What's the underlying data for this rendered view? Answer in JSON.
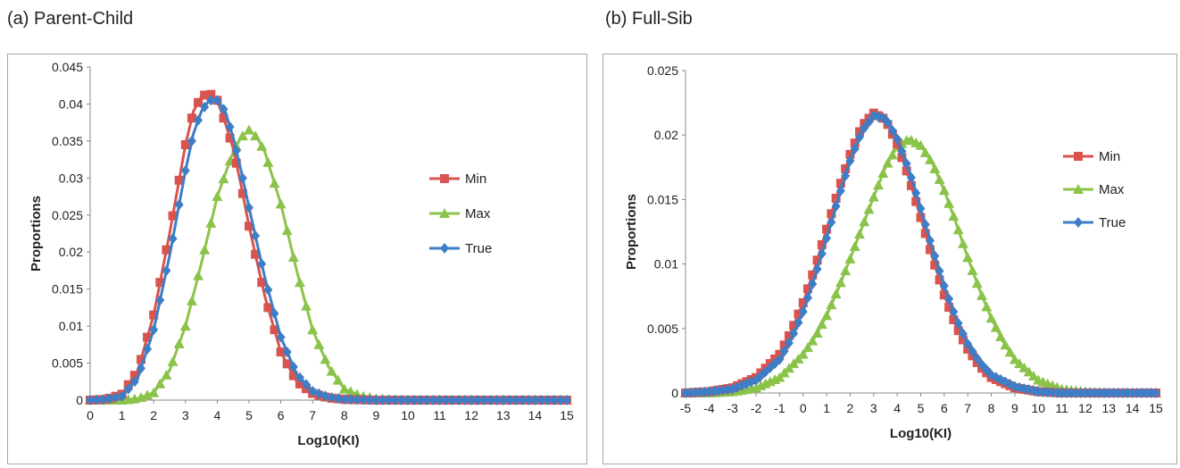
{
  "panels": [
    {
      "label": "(a) Parent-Child"
    },
    {
      "label": "(b) Full-Sib"
    }
  ],
  "chart_data": [
    {
      "type": "line",
      "xlabel": "Log10(KI)",
      "ylabel": "Proportions",
      "xlim": [
        0,
        15
      ],
      "ylim": [
        0,
        0.045
      ],
      "xticks": [
        0,
        1,
        2,
        3,
        4,
        5,
        6,
        7,
        8,
        9,
        10,
        11,
        12,
        13,
        14,
        15
      ],
      "yticks": [
        0,
        0.005,
        0.01,
        0.015,
        0.02,
        0.025,
        0.03,
        0.035,
        0.04,
        0.045
      ],
      "ytick_labels": [
        "0",
        "0.005",
        "0.01",
        "0.015",
        "0.02",
        "0.025",
        "0.03",
        "0.035",
        "0.04",
        "0.045"
      ],
      "grid": false,
      "legend": "right",
      "series": [
        {
          "name": "Min",
          "color": "#d9534f",
          "marker": "square",
          "x": [
            0,
            0.5,
            1,
            1.5,
            2,
            2.5,
            3,
            3.25,
            3.5,
            3.75,
            4,
            4.25,
            4.5,
            4.75,
            5,
            5.5,
            6,
            6.5,
            7,
            7.5,
            8,
            9,
            10,
            11,
            12,
            13,
            14,
            15
          ],
          "y": [
            0,
            0.0001,
            0.0008,
            0.004,
            0.0115,
            0.0225,
            0.0345,
            0.039,
            0.041,
            0.0415,
            0.0405,
            0.0375,
            0.034,
            0.029,
            0.0235,
            0.014,
            0.0065,
            0.0025,
            0.0009,
            0.0003,
            0.0001,
            0,
            0,
            0,
            0,
            0,
            0,
            0
          ]
        },
        {
          "name": "Max",
          "color": "#8bc34a",
          "marker": "triangle",
          "x": [
            0,
            1,
            1.5,
            2,
            2.5,
            3,
            3.5,
            4,
            4.5,
            4.75,
            5,
            5.25,
            5.5,
            6,
            6.5,
            7,
            7.5,
            8,
            8.5,
            9,
            10,
            11,
            12,
            13,
            14,
            15
          ],
          "y": [
            0,
            0,
            0.0002,
            0.001,
            0.004,
            0.01,
            0.0185,
            0.0275,
            0.0335,
            0.0355,
            0.0365,
            0.0355,
            0.0335,
            0.0265,
            0.0175,
            0.0095,
            0.0045,
            0.0015,
            0.0006,
            0.0002,
            0,
            0,
            0,
            0,
            0,
            0
          ]
        },
        {
          "name": "True",
          "color": "#3d7ec6",
          "marker": "diamond",
          "x": [
            0,
            0.5,
            1,
            1.5,
            2,
            2.5,
            3,
            3.25,
            3.5,
            3.75,
            4,
            4.25,
            4.5,
            4.75,
            5,
            5.5,
            6,
            6.5,
            7,
            7.5,
            8,
            9,
            10,
            11,
            12,
            13,
            14,
            15
          ],
          "y": [
            0,
            0.0001,
            0.0005,
            0.003,
            0.0095,
            0.0195,
            0.031,
            0.036,
            0.039,
            0.0405,
            0.0405,
            0.039,
            0.0355,
            0.031,
            0.026,
            0.0165,
            0.0085,
            0.0035,
            0.0012,
            0.0004,
            0.0001,
            0,
            0,
            0,
            0,
            0,
            0,
            0
          ]
        }
      ]
    },
    {
      "type": "line",
      "xlabel": "Log10(KI)",
      "ylabel": "Proportions",
      "xlim": [
        -5,
        15
      ],
      "ylim": [
        0,
        0.025
      ],
      "xticks": [
        -5,
        -4,
        -3,
        -2,
        -1,
        0,
        1,
        2,
        3,
        4,
        5,
        6,
        7,
        8,
        9,
        10,
        11,
        12,
        13,
        14,
        15
      ],
      "yticks": [
        0,
        0.005,
        0.01,
        0.015,
        0.02,
        0.025
      ],
      "ytick_labels": [
        "0",
        "0.005",
        "0.01",
        "0.015",
        "0.02",
        "0.025"
      ],
      "grid": false,
      "legend": "right",
      "series": [
        {
          "name": "Min",
          "color": "#d9534f",
          "marker": "square",
          "x": [
            -5,
            -4,
            -3,
            -2,
            -1,
            -0.5,
            0,
            0.5,
            1,
            1.5,
            2,
            2.5,
            3,
            3.5,
            4,
            4.5,
            5,
            5.5,
            6,
            6.5,
            7,
            7.5,
            8,
            9,
            10,
            11,
            12,
            13,
            14,
            15
          ],
          "y": [
            0,
            0.0001,
            0.0004,
            0.0012,
            0.003,
            0.0048,
            0.007,
            0.0097,
            0.0127,
            0.0157,
            0.0185,
            0.0207,
            0.0217,
            0.0212,
            0.0193,
            0.0167,
            0.0136,
            0.0105,
            0.0076,
            0.0052,
            0.0034,
            0.0021,
            0.0012,
            0.0004,
            0.0001,
            0,
            0,
            0,
            0,
            0
          ]
        },
        {
          "name": "Max",
          "color": "#8bc34a",
          "marker": "triangle",
          "x": [
            -5,
            -4,
            -3,
            -2,
            -1,
            0,
            0.5,
            1,
            1.5,
            2,
            2.5,
            3,
            3.5,
            4,
            4.5,
            5,
            5.5,
            6,
            6.5,
            7,
            7.5,
            8,
            8.5,
            9,
            10,
            11,
            12,
            13,
            14,
            15
          ],
          "y": [
            0,
            0,
            0.0001,
            0.0004,
            0.0012,
            0.003,
            0.0043,
            0.006,
            0.0081,
            0.0104,
            0.0128,
            0.0152,
            0.0175,
            0.0191,
            0.0197,
            0.0192,
            0.0178,
            0.0157,
            0.0132,
            0.0105,
            0.008,
            0.0058,
            0.004,
            0.0026,
            0.001,
            0.0003,
            0.0001,
            0,
            0,
            0
          ]
        },
        {
          "name": "True",
          "color": "#3d7ec6",
          "marker": "diamond",
          "x": [
            -5,
            -4,
            -3,
            -2,
            -1,
            -0.5,
            0,
            0.5,
            1,
            1.5,
            2,
            2.5,
            3,
            3.5,
            4,
            4.5,
            5,
            5.5,
            6,
            6.5,
            7,
            7.5,
            8,
            9,
            10,
            11,
            12,
            13,
            14,
            15
          ],
          "y": [
            0,
            0.0001,
            0.0003,
            0.001,
            0.0026,
            0.0042,
            0.0063,
            0.009,
            0.012,
            0.0151,
            0.018,
            0.0203,
            0.0215,
            0.0213,
            0.0197,
            0.0173,
            0.0143,
            0.0112,
            0.0083,
            0.0058,
            0.0038,
            0.0024,
            0.0014,
            0.0005,
            0.0001,
            0,
            0,
            0,
            0,
            0
          ]
        }
      ]
    }
  ]
}
